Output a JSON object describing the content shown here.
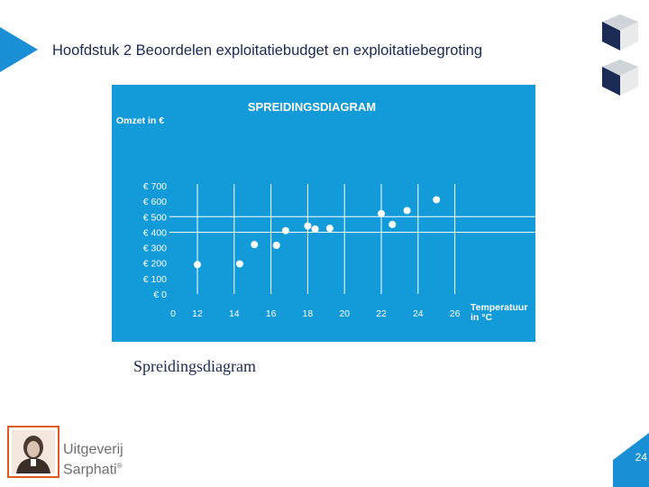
{
  "header": {
    "title": "Hoofdstuk 2 Beoordelen exploitatiebudget en exploitatiebegroting"
  },
  "caption": "Spreidingsdiagram",
  "publisher": {
    "line1": "Uitgeverij",
    "line2": "Sarphati",
    "mark": "®"
  },
  "page_number": "24",
  "colors": {
    "panel": "#139bd9",
    "accent": "#1b2a55",
    "badge": "#1a8fd6",
    "logo_frame": "#e05a1e"
  },
  "chart_data": {
    "type": "scatter",
    "title": "SPREIDINGSDIAGRAM",
    "ylabel": "Omzet in €",
    "xlabel": [
      "Temperatuur",
      "in °C"
    ],
    "xlim": [
      0,
      26
    ],
    "ylim": [
      0,
      700
    ],
    "x_ticks": [
      0,
      12,
      14,
      16,
      18,
      20,
      22,
      24,
      26
    ],
    "x_tick_labels": [
      "0",
      "12",
      "14",
      "16",
      "18",
      "20",
      "22",
      "24",
      "26"
    ],
    "y_ticks": [
      0,
      100,
      200,
      300,
      400,
      500,
      600,
      700
    ],
    "y_tick_labels": [
      "€ 0",
      "€ 100",
      "€ 200",
      "€ 300",
      "€ 400",
      "€ 500",
      "€ 600",
      "€ 700"
    ],
    "vertical_gridlines": [
      12,
      14,
      16,
      18,
      20,
      22,
      24,
      26
    ],
    "horizontal_gridlines": [
      400,
      500
    ],
    "points": [
      {
        "x": 12,
        "y": 190
      },
      {
        "x": 14.3,
        "y": 195
      },
      {
        "x": 15.1,
        "y": 320
      },
      {
        "x": 16.3,
        "y": 315
      },
      {
        "x": 16.8,
        "y": 410
      },
      {
        "x": 18,
        "y": 440
      },
      {
        "x": 18.4,
        "y": 420
      },
      {
        "x": 19.2,
        "y": 425
      },
      {
        "x": 22,
        "y": 520
      },
      {
        "x": 22.6,
        "y": 450
      },
      {
        "x": 23.4,
        "y": 540
      },
      {
        "x": 25,
        "y": 610
      }
    ]
  }
}
